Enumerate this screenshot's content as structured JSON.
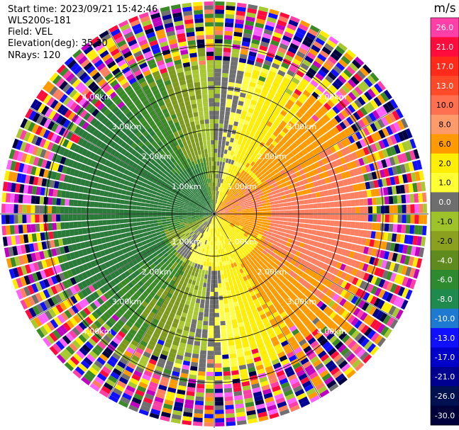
{
  "header": {
    "start_time": "Start time: 2023/09/21 15:42:46",
    "instrument": "WLS200s-181",
    "field": "Field: VEL",
    "elevation": "Elevation(deg): 35.30",
    "nrays": "NRays: 120"
  },
  "chart_data": {
    "type": "heatmap",
    "projection": "polar-ppi",
    "field": "VEL",
    "units": "m/s",
    "n_rays": 120,
    "range_rings": [
      {
        "label": "1.00km",
        "km": 1.0
      },
      {
        "label": "2.00km",
        "km": 2.0
      },
      {
        "label": "3.00km",
        "km": 3.0
      },
      {
        "label": "4.00km",
        "km": 4.0
      }
    ],
    "colorbar": {
      "ticks": [
        "26.0",
        "21.0",
        "17.0",
        "13.0",
        "10.0",
        "8.0",
        "6.0",
        "2.0",
        "1.0",
        "0.0",
        "-1.0",
        "-2.0",
        "-4.0",
        "-6.0",
        "-8.0",
        "-10.0",
        "-13.0",
        "-17.0",
        "-21.0",
        "-26.0",
        "-30.0"
      ],
      "colors": [
        "#ff3fa8",
        "#ff0b3c",
        "#ff2a1a",
        "#ff4a2a",
        "#ff7050",
        "#ff9a6a",
        "#ff9a00",
        "#ffee00",
        "#ffff33",
        "#6e6e6e",
        "#9ec22a",
        "#8aa01e",
        "#5e8a1e",
        "#2e8a2e",
        "#1e8a4e",
        "#1e7ad0",
        "#1010ff",
        "#0000c8",
        "#000090",
        "#001050",
        "#00003a"
      ]
    }
  }
}
